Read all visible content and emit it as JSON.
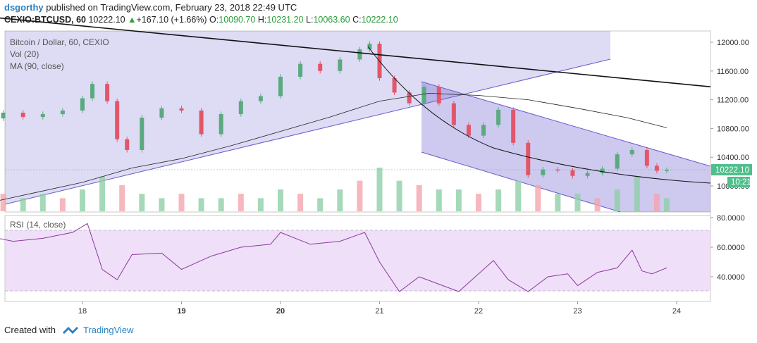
{
  "header": {
    "author": "dsgorthy",
    "published_text": "published on TradingView.com, February 23, 2018 22:49 UTC",
    "symbol": "CEXIO:BTCUSD, 60",
    "last": "10222.10",
    "change_arrow": "▲",
    "change": "+167.10 (+1.66%)",
    "open_label": "O:",
    "open": "10090.70",
    "high_label": "H:",
    "high": "10231.20",
    "low_label": "L:",
    "low": "10063.60",
    "close_label": "C:",
    "close": "10222.10"
  },
  "legend": {
    "title": "Bitcoin / Dollar, 60, CEXIO",
    "vol": "Vol (20)",
    "ma": "MA (90, close)",
    "rsi": "RSI (14, close)"
  },
  "price_badge": "10222.10",
  "countdown_badge": "10:21",
  "footer": {
    "created_with": "Created with",
    "brand": "TradingView"
  },
  "colors": {
    "up": "#5aaa80",
    "down": "#e3566a",
    "vol_up": "#8fd0a8",
    "vol_down": "#f4a5ae",
    "channel": "#6a5acd",
    "rsi_band": "#e8d2f7",
    "rsi_line": "#8b3a9b",
    "badge_green": "#4fbf8c",
    "brand": "#2a7fc0"
  },
  "chart_data": [
    {
      "type": "line",
      "title": "Bitcoin / Dollar, 60, CEXIO",
      "x_ticks": [
        "18",
        "19",
        "20",
        "21",
        "22",
        "23",
        "24"
      ],
      "y_ticks": [
        "12000.00",
        "11600.00",
        "11200.00",
        "10800.00",
        "10400.00",
        "10000.00"
      ],
      "ylim": [
        9650,
        12250
      ],
      "series": [
        {
          "name": "BTCUSD",
          "x": [
            17.0,
            17.2,
            17.4,
            17.6,
            17.8,
            18.0,
            18.1,
            18.25,
            18.35,
            18.45,
            18.6,
            18.8,
            19.0,
            19.2,
            19.4,
            19.6,
            19.8,
            20.0,
            20.2,
            20.4,
            20.6,
            20.8,
            20.9,
            21.0,
            21.15,
            21.3,
            21.45,
            21.6,
            21.75,
            21.9,
            22.05,
            22.2,
            22.35,
            22.5,
            22.65,
            22.8,
            22.95,
            23.1,
            23.25,
            23.4,
            23.55,
            23.7,
            23.8,
            23.9
          ],
          "values": [
            10940,
            11020,
            10960,
            11000,
            11050,
            11220,
            11420,
            11180,
            10650,
            10500,
            10950,
            11080,
            11050,
            10720,
            11000,
            11180,
            11250,
            11520,
            11700,
            11600,
            11760,
            11900,
            11980,
            11500,
            11300,
            11150,
            11380,
            11150,
            10850,
            10700,
            10850,
            11060,
            10600,
            10150,
            10230,
            10220,
            10140,
            10180,
            10240,
            10440,
            10500,
            10280,
            10210,
            10222
          ]
        },
        {
          "name": "MA (90, close)",
          "x": [
            17.0,
            17.5,
            18.0,
            18.5,
            19.0,
            19.5,
            20.0,
            20.5,
            21.0,
            21.5,
            22.0,
            22.5,
            23.0,
            23.5,
            23.9
          ],
          "values": [
            9750,
            9900,
            10050,
            10250,
            10380,
            10560,
            10760,
            10960,
            11180,
            11290,
            11260,
            11200,
            11080,
            10950,
            10810
          ]
        }
      ],
      "trendlines": [
        {
          "x": [
            17.0,
            24.35
          ],
          "values": [
            12360,
            11380
          ]
        },
        {
          "x": [
            17.0,
            23.35
          ],
          "values": [
            9720,
            11760
          ]
        }
      ]
    },
    {
      "type": "bar",
      "title": "Vol (20)",
      "x": [
        17.0,
        17.2,
        17.4,
        17.6,
        17.8,
        18.0,
        18.2,
        18.4,
        18.6,
        18.8,
        19.0,
        19.2,
        19.4,
        19.6,
        19.8,
        20.0,
        20.2,
        20.4,
        20.6,
        20.8,
        21.0,
        21.2,
        21.4,
        21.6,
        21.8,
        22.0,
        22.2,
        22.4,
        22.6,
        22.8,
        23.0,
        23.2,
        23.4,
        23.6,
        23.8,
        23.9
      ],
      "values": [
        0.3,
        0.4,
        0.3,
        0.4,
        0.3,
        0.5,
        0.8,
        0.6,
        0.4,
        0.3,
        0.4,
        0.3,
        0.3,
        0.4,
        0.3,
        0.5,
        0.4,
        0.3,
        0.5,
        0.7,
        1.0,
        0.7,
        0.6,
        0.5,
        0.5,
        0.4,
        0.5,
        0.7,
        0.6,
        0.4,
        0.4,
        0.3,
        0.5,
        0.8,
        0.4,
        0.3
      ]
    },
    {
      "type": "line",
      "title": "RSI (14, close)",
      "y_ticks": [
        "80.0000",
        "60.0000",
        "40.0000"
      ],
      "ylim": [
        25,
        80
      ],
      "bands": [
        30,
        70
      ],
      "series": [
        {
          "name": "RSI (14, close)",
          "x": [
            17.0,
            17.3,
            17.6,
            17.9,
            18.05,
            18.2,
            18.35,
            18.5,
            18.8,
            19.0,
            19.3,
            19.6,
            19.9,
            20.0,
            20.3,
            20.6,
            20.85,
            21.0,
            21.2,
            21.4,
            21.6,
            21.8,
            22.0,
            22.15,
            22.3,
            22.5,
            22.7,
            22.9,
            23.0,
            23.2,
            23.4,
            23.55,
            23.65,
            23.75,
            23.9
          ],
          "values": [
            68,
            64,
            66,
            70,
            76,
            45,
            38,
            55,
            56,
            45,
            54,
            60,
            62,
            70,
            62,
            64,
            70,
            50,
            30,
            40,
            35,
            30,
            42,
            51,
            38,
            30,
            40,
            42,
            34,
            43,
            46,
            58,
            44,
            42,
            46
          ]
        }
      ]
    }
  ]
}
